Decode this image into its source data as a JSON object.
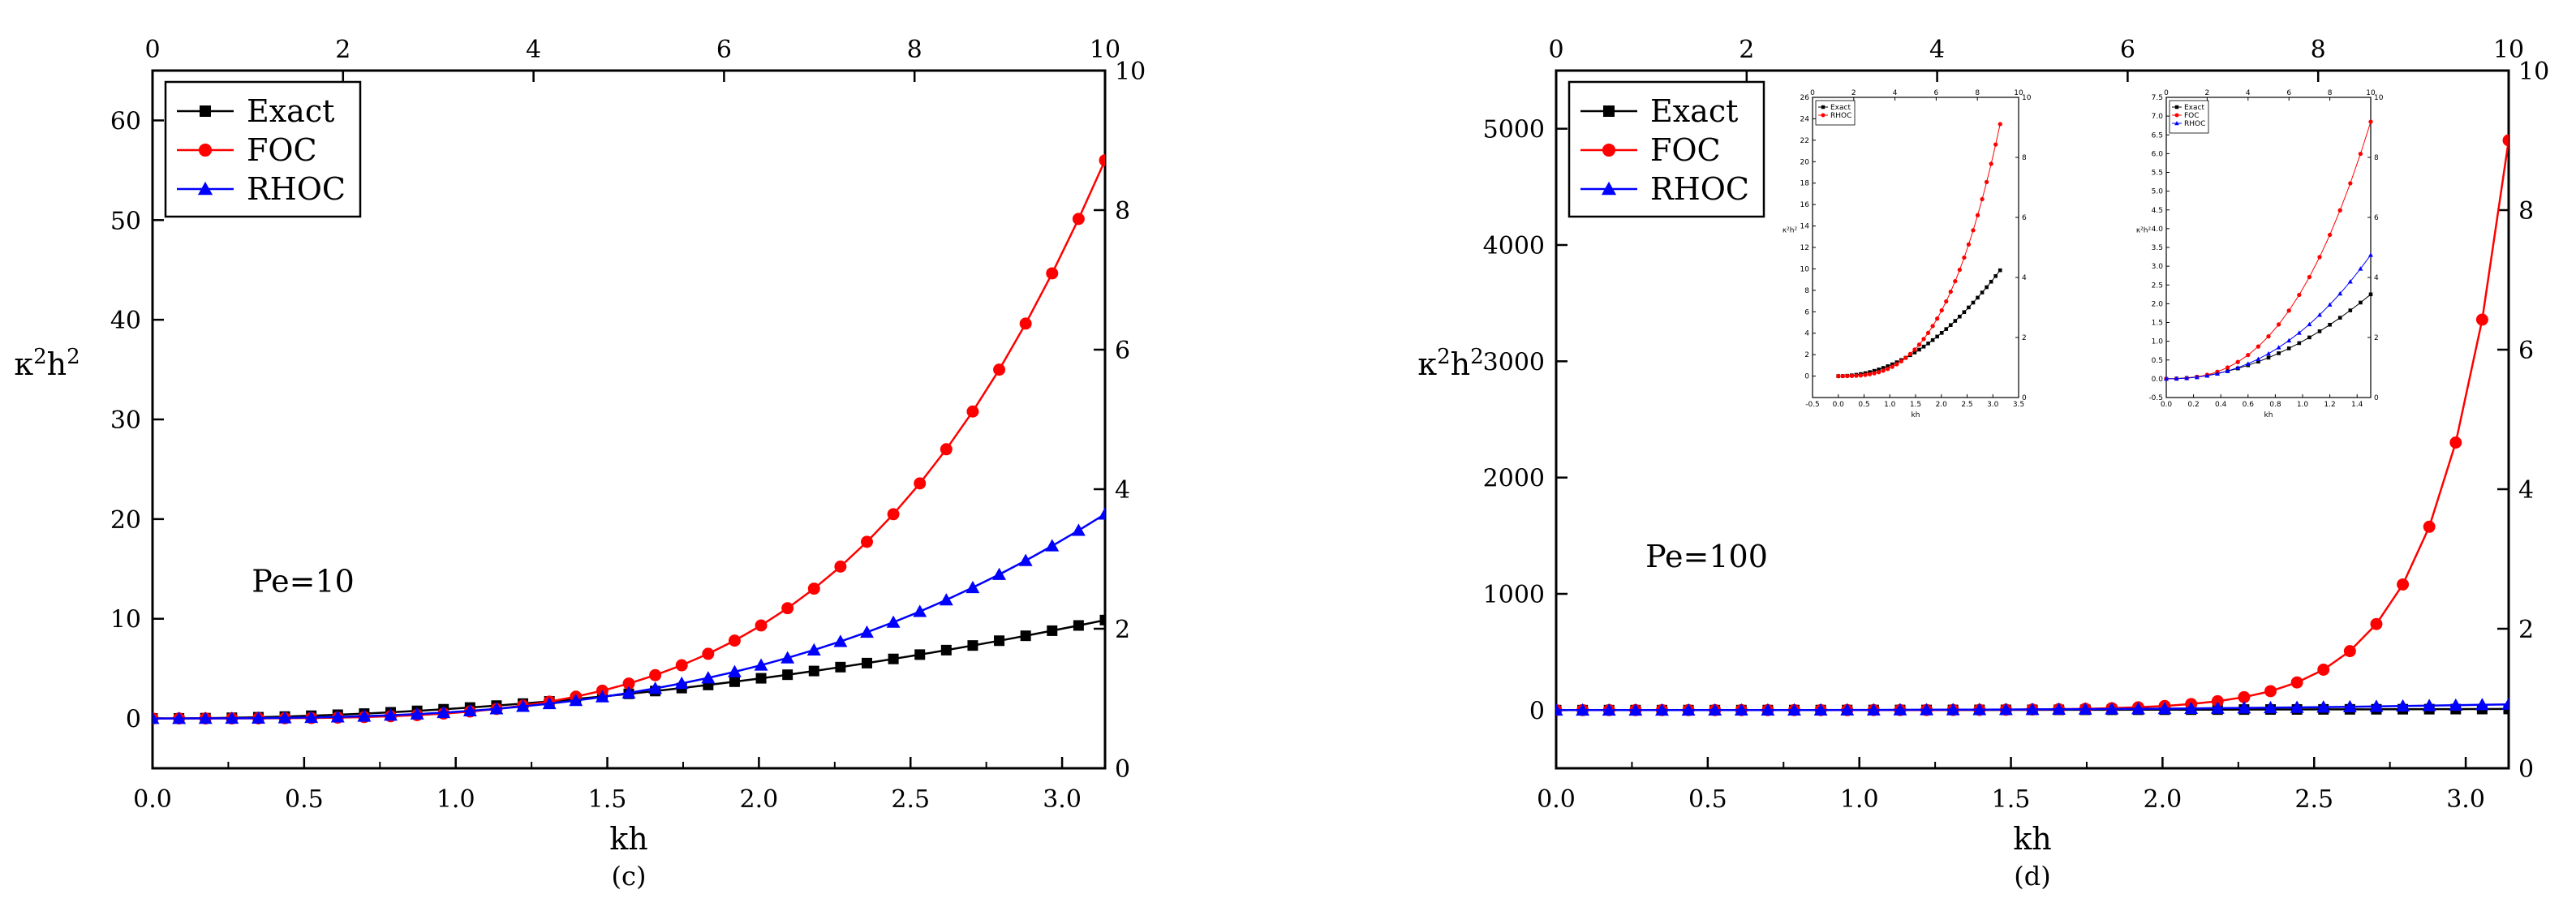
{
  "figure": {
    "panels": [
      "c",
      "d"
    ]
  },
  "chart_data": [
    {
      "id": "c",
      "type": "line",
      "caption": "(c)",
      "xlabel": "kh",
      "ylabel": "κ²h²",
      "annotation": "Pe=10",
      "xlim": [
        0,
        3.1416
      ],
      "ylim": [
        -5,
        65
      ],
      "xticks": [
        "0.0",
        "0.5",
        "1.0",
        "1.5",
        "2.0",
        "2.5",
        "3.0"
      ],
      "yticks": [
        "0",
        "10",
        "20",
        "30",
        "40",
        "50",
        "60"
      ],
      "top_axis": {
        "range": [
          0,
          10
        ],
        "ticks": [
          "0",
          "2",
          "4",
          "6",
          "8",
          "10"
        ]
      },
      "right_axis": {
        "range": [
          0,
          10
        ],
        "ticks": [
          "0",
          "2",
          "4",
          "6",
          "8",
          "10"
        ]
      },
      "legend": [
        "Exact",
        "FOC",
        "RHOC"
      ],
      "colors": {
        "Exact": "#000000",
        "FOC": "#ff0000",
        "RHOC": "#0000ff"
      },
      "series": [
        {
          "name": "Exact",
          "marker": "square",
          "x_max": 3.1416,
          "y_end": 9.87,
          "power": 2,
          "n": 37
        },
        {
          "name": "FOC",
          "marker": "circle",
          "x_max": 3.1416,
          "y_end": 56.0,
          "power": 4,
          "n": 37,
          "flatten_from": 0.85,
          "flatten_to": 1.0
        },
        {
          "name": "RHOC",
          "marker": "triangle",
          "x_max": 3.1416,
          "y_end": 20.5,
          "power": 3,
          "n": 37,
          "flatten_from": 0.75,
          "flatten_to": 1.0
        }
      ]
    },
    {
      "id": "d",
      "type": "line",
      "caption": "(d)",
      "xlabel": "kh",
      "ylabel": "κ²h²",
      "annotation": "Pe=100",
      "xlim": [
        0,
        3.1416
      ],
      "ylim": [
        -500,
        5500
      ],
      "xticks": [
        "0.0",
        "0.5",
        "1.0",
        "1.5",
        "2.0",
        "2.5",
        "3.0"
      ],
      "yticks": [
        "0",
        "1000",
        "2000",
        "3000",
        "4000",
        "5000"
      ],
      "top_axis": {
        "range": [
          0,
          10
        ],
        "ticks": [
          "0",
          "2",
          "4",
          "6",
          "8",
          "10"
        ]
      },
      "right_axis": {
        "range": [
          0,
          10
        ],
        "ticks": [
          "0",
          "2",
          "4",
          "6",
          "8",
          "10"
        ]
      },
      "legend": [
        "Exact",
        "FOC",
        "RHOC"
      ],
      "colors": {
        "Exact": "#000000",
        "FOC": "#ff0000",
        "RHOC": "#0000ff"
      },
      "series": [
        {
          "name": "Exact",
          "marker": "square",
          "x_max": 3.1416,
          "y_end": 9.87,
          "power": 2,
          "n": 37
        },
        {
          "name": "FOC",
          "marker": "circle",
          "x_max": 3.1416,
          "y_end": 4900,
          "power": 1,
          "exp": 60,
          "n": 37
        },
        {
          "name": "RHOC",
          "marker": "triangle",
          "x_max": 3.1416,
          "y_end": 50,
          "power": 3,
          "n": 37
        }
      ],
      "insets": [
        {
          "id": "d-inset-1",
          "xlim": [
            -0.5,
            3.5
          ],
          "ylim": [
            -2,
            26
          ],
          "xlabel": "kh",
          "ylabel": "κ²h²",
          "xticks": [
            "-0.5",
            "0.0",
            "0.5",
            "1.0",
            "1.5",
            "2.0",
            "2.5",
            "3.0",
            "3.5"
          ],
          "yticks": [
            "0",
            "2",
            "4",
            "6",
            "8",
            "10",
            "12",
            "14",
            "16",
            "18",
            "20",
            "22",
            "24",
            "26"
          ],
          "top_ticks": [
            "0",
            "2",
            "4",
            "6",
            "8",
            "10"
          ],
          "right_ticks": [
            "0",
            "2",
            "4",
            "6",
            "8",
            "10"
          ],
          "legend": [
            "Exact",
            "RHOC"
          ],
          "series": [
            {
              "name": "Exact",
              "marker": "square",
              "color": "#000000",
              "x_max": 3.1416,
              "y_end": 9.87,
              "power": 2,
              "n": 37
            },
            {
              "name": "RHOC",
              "marker": "circle",
              "color": "#ff0000",
              "x_max": 3.1416,
              "y_end": 23.5,
              "power": 3,
              "n": 37,
              "flatten_from": 0.9,
              "flatten_to": 1.0
            }
          ]
        },
        {
          "id": "d-inset-2",
          "xlim": [
            0,
            1.5
          ],
          "ylim": [
            -0.5,
            7.5
          ],
          "xlabel": "kh",
          "ylabel": "κ²h²",
          "xticks": [
            "0.0",
            "0.2",
            "0.4",
            "0.6",
            "0.8",
            "1.0",
            "1.2",
            "1.4"
          ],
          "yticks": [
            "-0.5",
            "0.0",
            "0.5",
            "1.0",
            "1.5",
            "2.0",
            "2.5",
            "3.0",
            "3.5",
            "4.0",
            "4.5",
            "5.0",
            "5.5",
            "6.0",
            "6.5",
            "7.0",
            "7.5"
          ],
          "top_ticks": [
            "0",
            "2",
            "4",
            "6",
            "8",
            "10"
          ],
          "right_ticks": [
            "0",
            "2",
            "4",
            "6",
            "8",
            "10"
          ],
          "legend": [
            "Exact",
            "FOC",
            "RHOC"
          ],
          "series": [
            {
              "name": "Exact",
              "marker": "square",
              "color": "#000000",
              "x_max": 1.5,
              "y_end": 2.25,
              "power": 2,
              "n": 21
            },
            {
              "name": "FOC",
              "marker": "circle",
              "color": "#ff0000",
              "x_max": 1.5,
              "y_end": 6.85,
              "power": 2.6,
              "n": 21
            },
            {
              "name": "RHOC",
              "marker": "triangle",
              "color": "#0000ff",
              "x_max": 1.5,
              "y_end": 3.3,
              "power": 2.3,
              "n": 21
            }
          ]
        }
      ]
    }
  ]
}
